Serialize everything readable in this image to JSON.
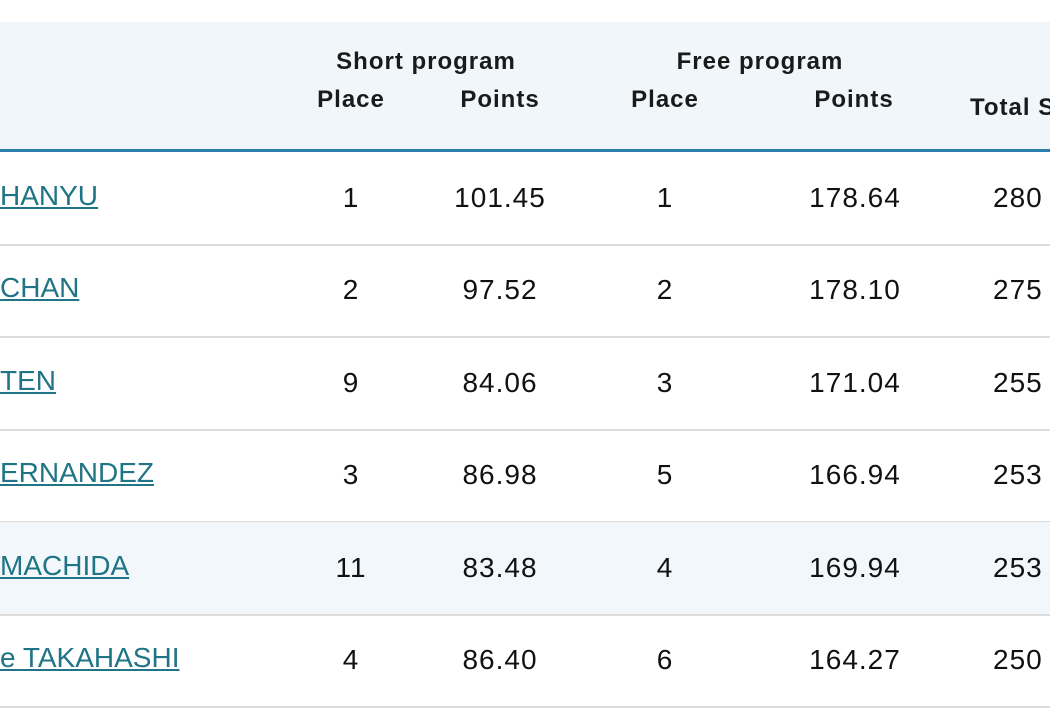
{
  "header": {
    "short_program": "Short program",
    "free_program": "Free program",
    "sp_place": "Place",
    "sp_points": "Points",
    "fp_place": "Place",
    "fp_points": "Points",
    "total": "Total S"
  },
  "rows": [
    {
      "name": "HANYU",
      "sp_place": "1",
      "sp_points": "101.45",
      "fp_place": "1",
      "fp_points": "178.64",
      "total": "280"
    },
    {
      "name": "CHAN",
      "sp_place": "2",
      "sp_points": "97.52",
      "fp_place": "2",
      "fp_points": "178.10",
      "total": "275"
    },
    {
      "name": "TEN",
      "sp_place": "9",
      "sp_points": "84.06",
      "fp_place": "3",
      "fp_points": "171.04",
      "total": "255"
    },
    {
      "name": "ERNANDEZ",
      "sp_place": "3",
      "sp_points": "86.98",
      "fp_place": "5",
      "fp_points": "166.94",
      "total": "253"
    },
    {
      "name": "MACHIDA",
      "sp_place": "11",
      "sp_points": "83.48",
      "fp_place": "4",
      "fp_points": "169.94",
      "total": "253"
    },
    {
      "name": "e TAKAHASHI",
      "sp_place": "4",
      "sp_points": "86.40",
      "fp_place": "6",
      "fp_points": "164.27",
      "total": "250"
    }
  ],
  "colors": {
    "link": "#1f7485",
    "header_rule": "#2a7fae",
    "header_bg": "#f0f6f9"
  }
}
